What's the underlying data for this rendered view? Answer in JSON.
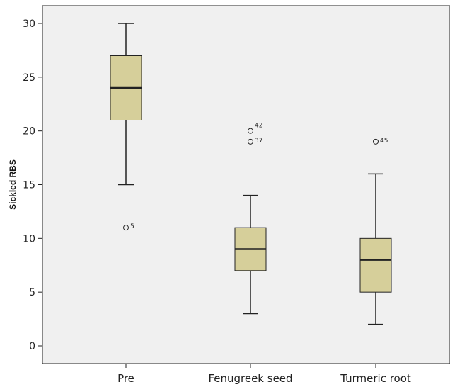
{
  "chart_data": {
    "type": "boxplot",
    "ylabel": "Sickled RBS",
    "xlabel": "",
    "ylim": [
      -1.5,
      31.5
    ],
    "yticks": [
      0,
      5,
      10,
      15,
      20,
      25,
      30
    ],
    "categories": [
      "Pre",
      "Fenugreek seed",
      "Turmeric root"
    ],
    "boxes": [
      {
        "category": "Pre",
        "whisker_low": 15,
        "q1": 21,
        "median": 24,
        "q3": 27,
        "whisker_high": 30,
        "outliers": [
          {
            "value": 11,
            "label": "5"
          }
        ]
      },
      {
        "category": "Fenugreek seed",
        "whisker_low": 3,
        "q1": 7,
        "median": 9,
        "q3": 11,
        "whisker_high": 14,
        "outliers": [
          {
            "value": 20,
            "label": "42"
          },
          {
            "value": 19,
            "label": "37"
          }
        ]
      },
      {
        "category": "Turmeric root",
        "whisker_low": 2,
        "q1": 5,
        "median": 8,
        "q3": 10,
        "whisker_high": 16,
        "outliers": [
          {
            "value": 19,
            "label": "45"
          }
        ]
      }
    ],
    "colors": {
      "plot_bg": "#f0f0f0",
      "box_fill": "#d6cf9a",
      "stroke": "#222222"
    },
    "grid": false,
    "legend": "none"
  }
}
